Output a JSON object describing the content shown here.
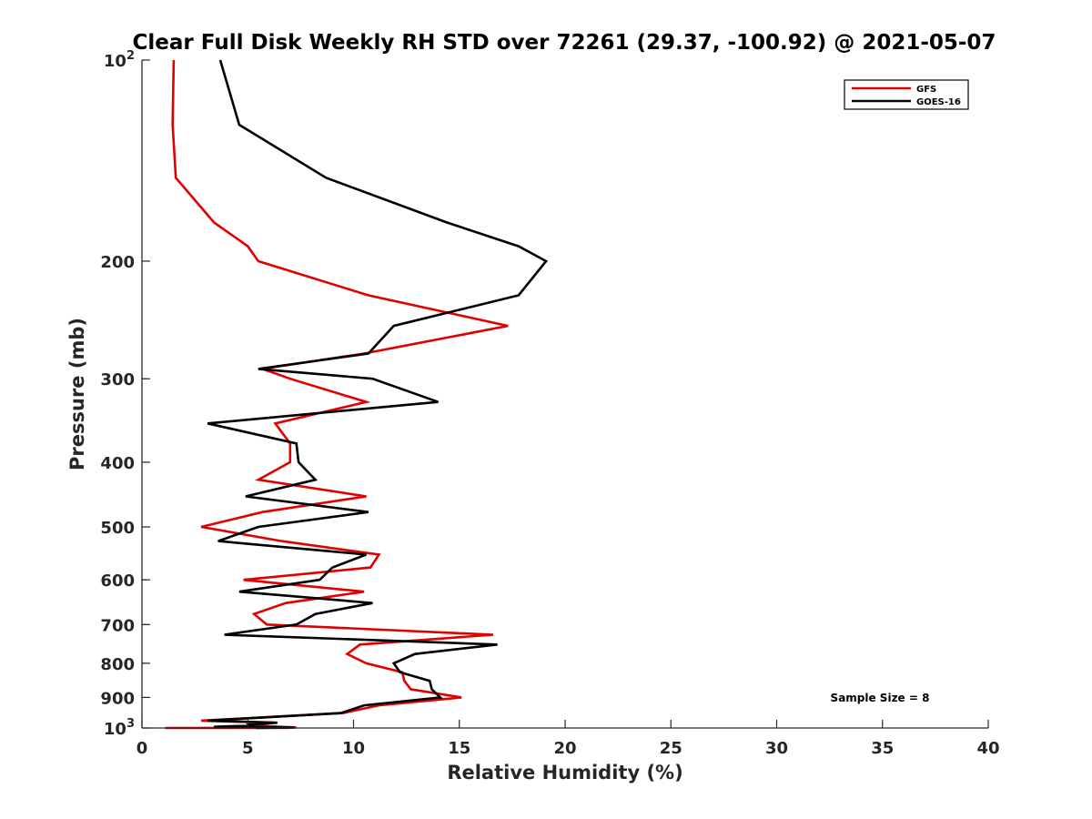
{
  "chart_data": {
    "type": "line",
    "title": "Clear Full Disk Weekly RH STD over 72261 (29.37, -100.92) @ 2021-05-07",
    "xlabel": "Relative Humidity (%)",
    "ylabel": "Pressure (mb)",
    "xlim": [
      0,
      40
    ],
    "ylim": [
      100,
      1000
    ],
    "y_scale": "log",
    "y_reversed": true,
    "grid": false,
    "legend_position": "top-right",
    "x_ticks": [
      "0",
      "5",
      "10",
      "15",
      "20",
      "25",
      "30",
      "35",
      "40"
    ],
    "y_ticks": [
      {
        "value": 100,
        "base": "10",
        "exp": "2"
      },
      {
        "value": 200,
        "label": "200"
      },
      {
        "value": 300,
        "label": "300"
      },
      {
        "value": 400,
        "label": "400"
      },
      {
        "value": 500,
        "label": "500"
      },
      {
        "value": 600,
        "label": "600"
      },
      {
        "value": 700,
        "label": "700"
      },
      {
        "value": 800,
        "label": "800"
      },
      {
        "value": 900,
        "label": "900"
      },
      {
        "value": 1000,
        "base": "10",
        "exp": "3"
      }
    ],
    "annotation": "Sample Size = 8",
    "series": [
      {
        "name": "GFS",
        "color": "#e00000",
        "points": [
          [
            1.5,
            100
          ],
          [
            1.45,
            125
          ],
          [
            1.6,
            150
          ],
          [
            3.4,
            175
          ],
          [
            5.0,
            190
          ],
          [
            5.5,
            200
          ],
          [
            10.7,
            225
          ],
          [
            17.3,
            250
          ],
          [
            10.5,
            275
          ],
          [
            5.7,
            290
          ],
          [
            7.0,
            300
          ],
          [
            10.6,
            325
          ],
          [
            6.3,
            350
          ],
          [
            7.0,
            375
          ],
          [
            7.0,
            400
          ],
          [
            5.5,
            425
          ],
          [
            10.6,
            450
          ],
          [
            5.7,
            475
          ],
          [
            2.8,
            500
          ],
          [
            6.6,
            525
          ],
          [
            11.2,
            550
          ],
          [
            10.8,
            575
          ],
          [
            4.8,
            600
          ],
          [
            10.5,
            625
          ],
          [
            6.8,
            650
          ],
          [
            5.3,
            675
          ],
          [
            5.9,
            700
          ],
          [
            16.6,
            725
          ],
          [
            10.3,
            750
          ],
          [
            9.7,
            775
          ],
          [
            10.6,
            800
          ],
          [
            12.3,
            825
          ],
          [
            12.4,
            850
          ],
          [
            12.7,
            875
          ],
          [
            15.1,
            900
          ],
          [
            11.2,
            925
          ],
          [
            9.5,
            950
          ],
          [
            2.8,
            975
          ],
          [
            6.2,
            982
          ],
          [
            5.2,
            990
          ],
          [
            6.3,
            995
          ],
          [
            7.3,
            998
          ],
          [
            6.0,
            999
          ],
          [
            7.0,
            999.5
          ],
          [
            1.1,
            1000
          ]
        ]
      },
      {
        "name": "GOES-16",
        "color": "#000000",
        "points": [
          [
            3.7,
            100
          ],
          [
            4.6,
            125
          ],
          [
            8.7,
            150
          ],
          [
            14.4,
            175
          ],
          [
            17.8,
            190
          ],
          [
            19.1,
            200
          ],
          [
            17.8,
            225
          ],
          [
            11.9,
            250
          ],
          [
            10.7,
            275
          ],
          [
            5.5,
            290
          ],
          [
            10.9,
            300
          ],
          [
            14.0,
            325
          ],
          [
            3.1,
            350
          ],
          [
            7.3,
            375
          ],
          [
            7.4,
            400
          ],
          [
            8.2,
            425
          ],
          [
            4.9,
            450
          ],
          [
            10.7,
            475
          ],
          [
            5.5,
            500
          ],
          [
            3.6,
            525
          ],
          [
            10.6,
            550
          ],
          [
            9.0,
            575
          ],
          [
            8.4,
            600
          ],
          [
            4.6,
            625
          ],
          [
            10.9,
            650
          ],
          [
            8.2,
            675
          ],
          [
            7.3,
            700
          ],
          [
            3.9,
            725
          ],
          [
            16.8,
            750
          ],
          [
            12.9,
            775
          ],
          [
            11.9,
            800
          ],
          [
            12.2,
            825
          ],
          [
            13.6,
            850
          ],
          [
            13.7,
            875
          ],
          [
            14.1,
            900
          ],
          [
            10.5,
            925
          ],
          [
            9.4,
            950
          ],
          [
            3.1,
            975
          ],
          [
            6.4,
            982
          ],
          [
            5.1,
            988
          ],
          [
            5.2,
            992
          ],
          [
            3.4,
            996
          ],
          [
            7.2,
            998
          ],
          [
            5.4,
            1000
          ]
        ]
      }
    ]
  }
}
